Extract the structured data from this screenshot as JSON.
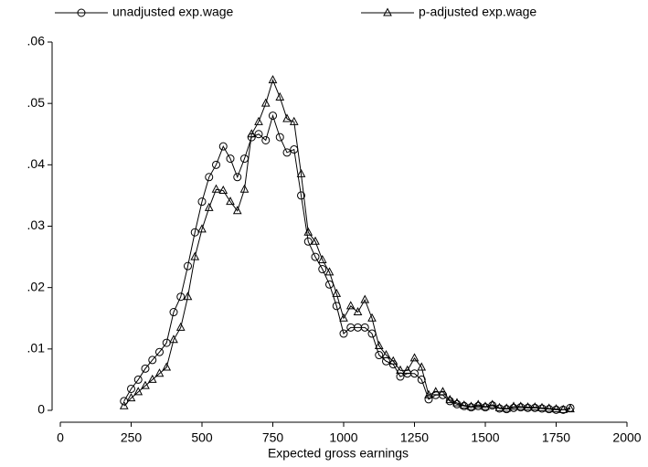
{
  "chart_data": {
    "type": "line",
    "xlabel": "Expected gross earnings",
    "x": [
      225,
      250,
      275,
      300,
      325,
      350,
      375,
      400,
      425,
      450,
      475,
      500,
      525,
      550,
      575,
      600,
      625,
      650,
      675,
      700,
      725,
      750,
      775,
      800,
      825,
      850,
      875,
      900,
      925,
      950,
      975,
      1000,
      1025,
      1050,
      1075,
      1100,
      1125,
      1150,
      1175,
      1200,
      1225,
      1250,
      1275,
      1300,
      1325,
      1350,
      1375,
      1400,
      1425,
      1450,
      1475,
      1500,
      1525,
      1550,
      1575,
      1600,
      1625,
      1650,
      1675,
      1700,
      1725,
      1750,
      1775,
      1800
    ],
    "series": [
      {
        "name": "unadjusted exp.wage",
        "color": "#000000",
        "marker": "circle",
        "values": [
          0.0015,
          0.0035,
          0.005,
          0.0068,
          0.0082,
          0.0095,
          0.011,
          0.016,
          0.0185,
          0.0235,
          0.029,
          0.034,
          0.038,
          0.04,
          0.043,
          0.041,
          0.038,
          0.041,
          0.0445,
          0.045,
          0.044,
          0.048,
          0.0445,
          0.042,
          0.0425,
          0.035,
          0.0275,
          0.025,
          0.023,
          0.0205,
          0.017,
          0.0125,
          0.0135,
          0.0135,
          0.0135,
          0.0125,
          0.009,
          0.008,
          0.0075,
          0.0055,
          0.006,
          0.006,
          0.005,
          0.0018,
          0.0025,
          0.0025,
          0.0015,
          0.001,
          0.0007,
          0.0005,
          0.0007,
          0.0005,
          0.0008,
          0.0003,
          0.0002,
          0.0004,
          0.0005,
          0.0004,
          0.0004,
          0.0003,
          0.0002,
          0.0001,
          0.0001,
          0.0004
        ]
      },
      {
        "name": "p-adjusted exp.wage",
        "color": "#000000",
        "marker": "triangle",
        "values": [
          0.0007,
          0.002,
          0.003,
          0.004,
          0.005,
          0.006,
          0.007,
          0.0115,
          0.0135,
          0.0185,
          0.025,
          0.0295,
          0.033,
          0.036,
          0.0358,
          0.034,
          0.0325,
          0.036,
          0.045,
          0.047,
          0.05,
          0.0538,
          0.051,
          0.0475,
          0.047,
          0.0385,
          0.029,
          0.0275,
          0.0245,
          0.0225,
          0.019,
          0.015,
          0.017,
          0.016,
          0.018,
          0.015,
          0.0105,
          0.009,
          0.008,
          0.0065,
          0.0065,
          0.0085,
          0.007,
          0.0025,
          0.003,
          0.003,
          0.0017,
          0.0012,
          0.0008,
          0.0006,
          0.0009,
          0.0006,
          0.0009,
          0.0004,
          0.0003,
          0.0006,
          0.0006,
          0.0005,
          0.0005,
          0.0004,
          0.0003,
          0.0002,
          0.0001,
          0.0002
        ]
      }
    ],
    "xlim": [
      0,
      2000
    ],
    "xticks": [
      0,
      250,
      500,
      750,
      1000,
      1250,
      1500,
      1750,
      2000
    ],
    "ylim": [
      0,
      0.06
    ],
    "yticks": [
      0,
      {
        "value": 0.01,
        "label": ".01"
      },
      {
        "value": 0.02,
        "label": ".02"
      },
      {
        "value": 0.03,
        "label": ".03"
      },
      {
        "value": 0.04,
        "label": ".04"
      },
      {
        "value": 0.05,
        "label": ".05"
      },
      {
        "value": 0.06,
        "label": ".06"
      }
    ],
    "grid": false,
    "legend": "top"
  }
}
